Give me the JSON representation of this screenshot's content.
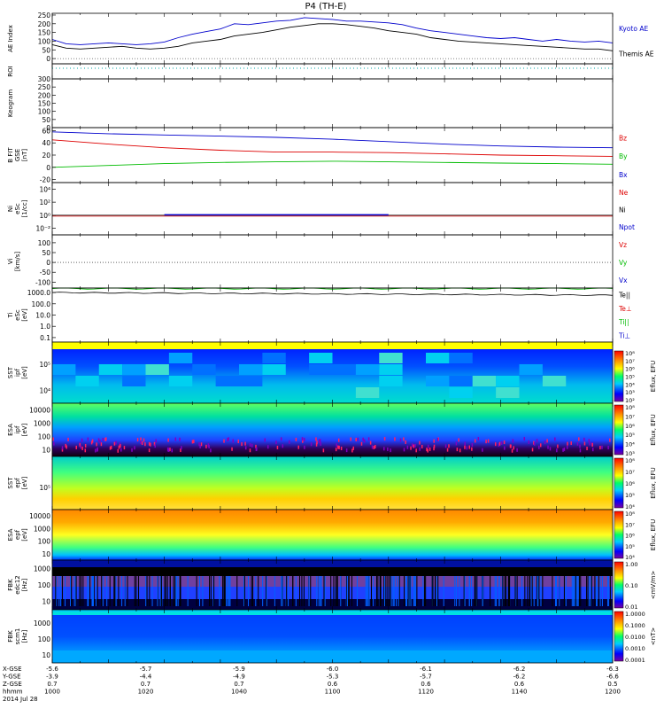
{
  "title": "P4 (TH-E)",
  "colors": {
    "blue": "#0000cc",
    "red": "#dd0000",
    "green": "#00bb00",
    "black": "#000000",
    "cyan": "#00aaaa"
  },
  "chart_data": {
    "type": "line",
    "x_range": [
      1000,
      1200
    ],
    "panels": [
      {
        "id": "ae",
        "ylabel": "AE Index",
        "yrange": [
          -30,
          260
        ],
        "ticks": [
          "250",
          "200",
          "150",
          "100",
          "50",
          "0"
        ],
        "tick_values": [
          250,
          200,
          150,
          100,
          50,
          0
        ],
        "legend": [
          "Kyoto AE",
          "Themis AE"
        ],
        "series": [
          {
            "name": "Kyoto AE",
            "color": "#0000cc",
            "x": [
              1000,
              1005,
              1010,
              1015,
              1020,
              1025,
              1030,
              1035,
              1040,
              1045,
              1050,
              1055,
              1060,
              1065,
              1070,
              1075,
              1080,
              1085,
              1090,
              1095,
              1100,
              1105,
              1110,
              1115,
              1120,
              1125,
              1130,
              1135,
              1140,
              1145,
              1150,
              1155,
              1160,
              1165,
              1170,
              1175,
              1180,
              1185,
              1190,
              1195,
              1200
            ],
            "y": [
              110,
              85,
              80,
              85,
              90,
              85,
              80,
              85,
              95,
              120,
              140,
              155,
              170,
              200,
              195,
              205,
              215,
              220,
              235,
              230,
              225,
              215,
              215,
              210,
              205,
              195,
              175,
              160,
              150,
              140,
              130,
              120,
              115,
              120,
              110,
              100,
              110,
              100,
              95,
              100,
              90
            ]
          },
          {
            "name": "Themis AE",
            "color": "#000000",
            "x": [
              1000,
              1005,
              1010,
              1015,
              1020,
              1025,
              1030,
              1035,
              1040,
              1045,
              1050,
              1055,
              1060,
              1065,
              1070,
              1075,
              1080,
              1085,
              1090,
              1095,
              1100,
              1105,
              1110,
              1115,
              1120,
              1125,
              1130,
              1135,
              1140,
              1145,
              1150,
              1155,
              1160,
              1165,
              1170,
              1175,
              1180,
              1185,
              1190,
              1195,
              1200
            ],
            "y": [
              80,
              60,
              55,
              60,
              65,
              70,
              60,
              55,
              60,
              70,
              90,
              100,
              110,
              130,
              140,
              150,
              165,
              180,
              190,
              200,
              200,
              195,
              185,
              175,
              160,
              150,
              140,
              120,
              110,
              100,
              95,
              90,
              85,
              80,
              75,
              70,
              65,
              60,
              55,
              55,
              45
            ]
          }
        ]
      },
      {
        "id": "roi",
        "ylabel": "ROI",
        "ticks": [],
        "tick_values": [],
        "legend": []
      },
      {
        "id": "keogram",
        "ylabel": "Keogram",
        "yrange": [
          0,
          300
        ],
        "ticks": [
          "300",
          "250",
          "200",
          "150",
          "100",
          "50",
          "0"
        ],
        "tick_values": [
          300,
          250,
          200,
          150,
          100,
          50,
          0
        ],
        "legend": []
      },
      {
        "id": "bfield",
        "ylabel": "B FIT",
        "sublabel": "GSE",
        "unit": "[nT]",
        "yrange": [
          -25,
          65
        ],
        "ticks": [
          "60",
          "40",
          "20",
          "0",
          "-20"
        ],
        "tick_values": [
          60,
          40,
          20,
          0,
          -20
        ],
        "legend": [
          "Bz",
          "By",
          "Bx"
        ],
        "series": [
          {
            "name": "Bz",
            "color": "#dd0000",
            "x": [
              1000,
              1020,
              1040,
              1060,
              1080,
              1100,
              1120,
              1140,
              1160,
              1180,
              1200
            ],
            "y": [
              45,
              38,
              32,
              28,
              25,
              25,
              24,
              22,
              20,
              19,
              18
            ]
          },
          {
            "name": "By",
            "color": "#00bb00",
            "x": [
              1000,
              1020,
              1040,
              1060,
              1080,
              1100,
              1120,
              1140,
              1160,
              1180,
              1200
            ],
            "y": [
              0,
              3,
              6,
              8,
              9,
              10,
              9,
              8,
              7,
              6,
              5
            ]
          },
          {
            "name": "Bx",
            "color": "#0000cc",
            "x": [
              1000,
              1020,
              1040,
              1060,
              1080,
              1100,
              1120,
              1140,
              1160,
              1180,
              1200
            ],
            "y": [
              58,
              55,
              53,
              51,
              49,
              46,
              42,
              38,
              35,
              33,
              32
            ]
          }
        ]
      },
      {
        "id": "density",
        "ylabel": "Ni",
        "sublabel": "eSc",
        "unit": "[1/cc]",
        "ticks": [
          "10⁴",
          "10²",
          "10⁰",
          "10⁻²"
        ],
        "tick_values": [
          4,
          2,
          0,
          -2
        ],
        "yrange": [
          -3,
          5
        ],
        "legend": [
          "Ne",
          "Ni",
          "Npot"
        ]
      },
      {
        "id": "velocity",
        "ylabel": "Vi",
        "unit": "[km/s]",
        "yrange": [
          -130,
          140
        ],
        "ticks": [
          "100",
          "50",
          "0",
          "-50",
          "-100"
        ],
        "tick_values": [
          100,
          50,
          0,
          -50,
          -100
        ],
        "legend": [
          "Vz",
          "Vy",
          "Vx"
        ]
      },
      {
        "id": "temperature",
        "ylabel": "Ti",
        "sublabel": "eSc",
        "unit": "[eV]",
        "ticks": [
          "1000.0",
          "100.0",
          "10.0",
          "1.0",
          "0.1"
        ],
        "tick_values": [
          3,
          2,
          1,
          0,
          -1
        ],
        "yrange": [
          -1.4,
          3.4
        ],
        "legend": [
          "Te||",
          "Te⊥",
          "Ti||",
          "Ti⊥"
        ]
      },
      {
        "id": "sst_i",
        "ylabel": "SST",
        "sublabel": "ipf",
        "unit": "[eV]",
        "ticks": [
          "10⁵",
          "10⁴"
        ],
        "cbar": [
          "10⁸",
          "10⁷",
          "10⁶",
          "10⁵",
          "10⁴",
          "10³",
          "10²"
        ],
        "cbar_label": "Eflux, EFU"
      },
      {
        "id": "esa_i",
        "ylabel": "ESA",
        "sublabel": "ipf",
        "unit": "[eV]",
        "ticks": [
          "10000",
          "1000",
          "100",
          "10"
        ],
        "cbar": [
          "10⁸",
          "10⁷",
          "10⁶",
          "10⁵",
          "10⁴",
          "10³"
        ],
        "cbar_label": "Eflux, EFU"
      },
      {
        "id": "sst_e",
        "ylabel": "SST",
        "sublabel": "epf",
        "unit": "[eV]",
        "ticks": [
          "10⁵"
        ],
        "cbar": [
          "10⁸",
          "10⁷",
          "10⁶",
          "10⁵",
          "10⁴"
        ],
        "cbar_label": "Eflux, EFU"
      },
      {
        "id": "esa_e",
        "ylabel": "ESA",
        "sublabel": "epf",
        "unit": "[eV]",
        "ticks": [
          "10000",
          "1000",
          "100",
          "10"
        ],
        "cbar": [
          "10⁸",
          "10⁷",
          "10⁶",
          "10⁵",
          "10⁴"
        ],
        "cbar_label": "Eflux, EFU"
      },
      {
        "id": "fbk_e",
        "ylabel": "FBK",
        "sublabel": "edc12",
        "unit": "[Hz]",
        "ticks": [
          "1000",
          "100",
          "10"
        ],
        "cbar": [
          "1.00",
          "0.10",
          "0.01"
        ],
        "cbar_label": "<mV/m>"
      },
      {
        "id": "fbk_b",
        "ylabel": "FBK",
        "sublabel": "scm1",
        "unit": "[Hz]",
        "ticks": [
          "1000",
          "100",
          "10"
        ],
        "cbar": [
          "1.0000",
          "0.1000",
          "0.0100",
          "0.0010",
          "0.0001"
        ],
        "cbar_label": "<nT>"
      }
    ],
    "x_axis_rows": [
      {
        "label": "X-GSE",
        "values": [
          "-5.6",
          "-5.7",
          "-5.9",
          "-6.0",
          "-6.1",
          "-6.2",
          "-6.3"
        ]
      },
      {
        "label": "Y-GSE",
        "values": [
          "-3.9",
          "-4.4",
          "-4.9",
          "-5.3",
          "-5.7",
          "-6.2",
          "-6.6"
        ]
      },
      {
        "label": "Z-GSE",
        "values": [
          "0.7",
          "0.7",
          "0.7",
          "0.6",
          "0.6",
          "0.6",
          "0.5"
        ]
      },
      {
        "label": "hhmm",
        "values": [
          "1000",
          "1020",
          "1040",
          "1100",
          "1120",
          "1140",
          "1200"
        ]
      }
    ],
    "date": "2014 Jul 28"
  }
}
